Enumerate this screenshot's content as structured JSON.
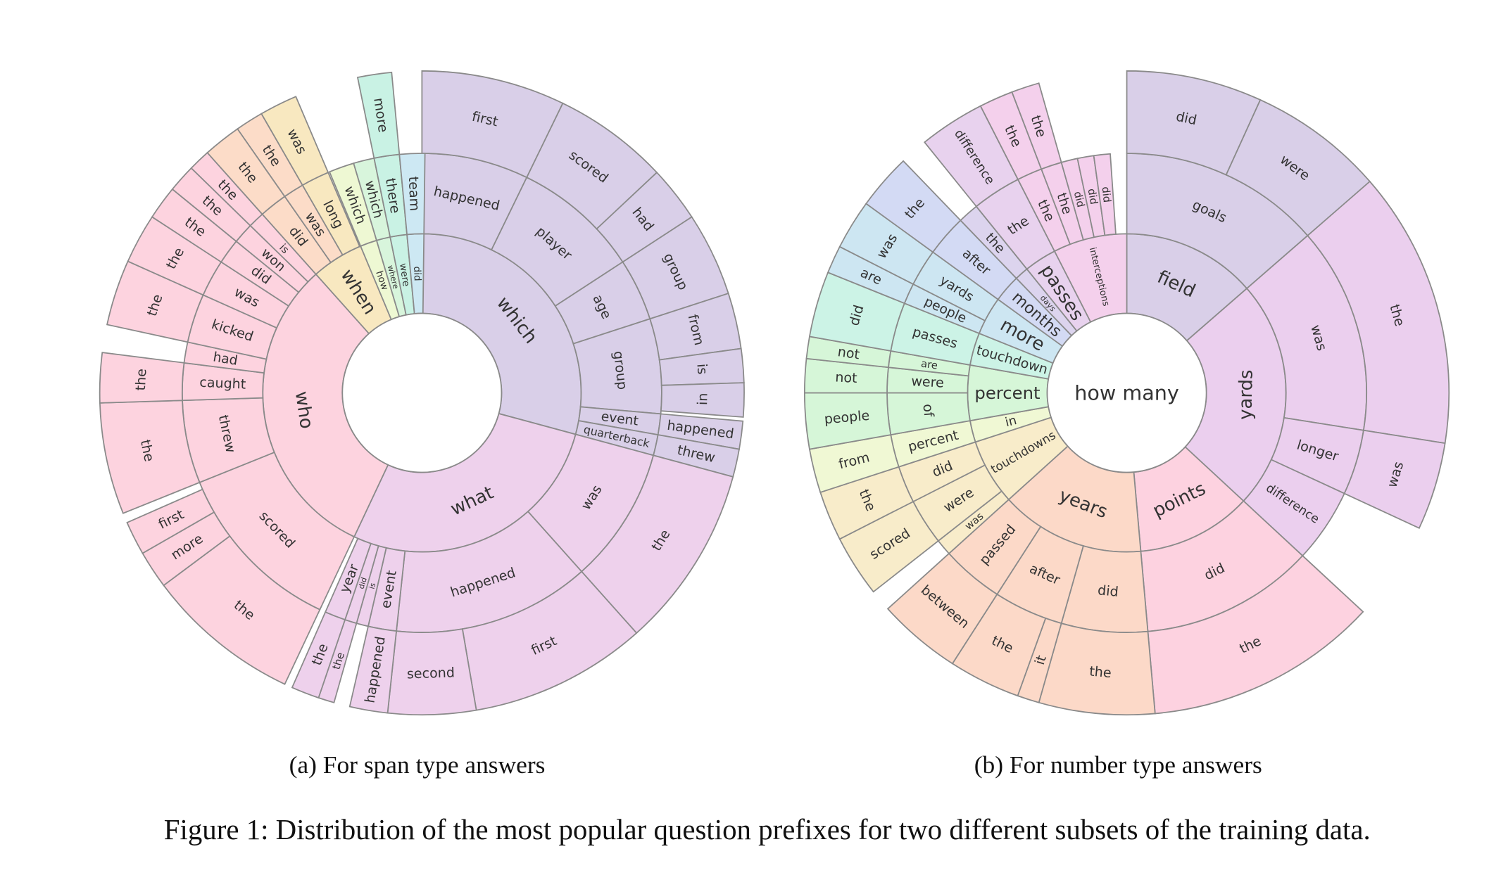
{
  "chart_data": [
    {
      "type": "sunburst",
      "caption": "(a) For span type answers",
      "children": [
        {
          "name": "which",
          "value": 29.2,
          "color": "#d9cfe8",
          "children": [
            {
              "name": "happened",
              "value": 7.2,
              "children": [
                {
                  "name": "first",
                  "value": 7.2
                }
              ]
            },
            {
              "name": "player",
              "value": 8.6,
              "children": [
                {
                  "name": "scored",
                  "value": 5.8
                },
                {
                  "name": "had",
                  "value": 2.8
                }
              ]
            },
            {
              "name": "age",
              "value": 4.2,
              "children": [
                {
                  "name": "group",
                  "value": 4.2
                }
              ]
            },
            {
              "name": "group",
              "value": 6.4,
              "children": [
                {
                  "name": "from",
                  "value": 2.8
                },
                {
                  "name": "is",
                  "value": 1.7
                },
                {
                  "name": "in",
                  "value": 1.7
                }
              ]
            },
            {
              "name": "event",
              "value": 1.4,
              "children": [
                {
                  "name": "happened",
                  "value": 1.4
                }
              ]
            },
            {
              "name": "quarterback",
              "value": 1.4,
              "children": [
                {
                  "name": "threw",
                  "value": 1.4
                }
              ]
            }
          ]
        },
        {
          "name": "what",
          "value": 27.8,
          "color": "#eed1ec",
          "children": [
            {
              "name": "was",
              "value": 9.2,
              "children": [
                {
                  "name": "the",
                  "value": 9.2
                }
              ]
            },
            {
              "name": "happened",
              "value": 13.3,
              "children": [
                {
                  "name": "first",
                  "value": 8.9
                },
                {
                  "name": "second",
                  "value": 4.4
                }
              ]
            },
            {
              "name": "event",
              "value": 1.9,
              "children": [
                {
                  "name": "happened",
                  "value": 1.9
                }
              ]
            },
            {
              "name": "is",
              "value": 0.8
            },
            {
              "name": "did",
              "value": 0.8,
              "children": [
                {
                  "name": "the",
                  "value": 0.8
                }
              ]
            },
            {
              "name": "year",
              "value": 1.4,
              "children": [
                {
                  "name": "the",
                  "value": 1.4
                }
              ]
            }
          ]
        },
        {
          "name": "who",
          "value": 31.4,
          "color": "#fdd3df",
          "children": [
            {
              "name": "scored",
              "value": 11.9,
              "children": [
                {
                  "name": "the",
                  "value": 7.8
                },
                {
                  "name": "more",
                  "value": 1.9
                },
                {
                  "name": "first",
                  "value": 1.7
                }
              ]
            },
            {
              "name": "threw",
              "value": 5.6,
              "children": [
                {
                  "name": "the",
                  "value": 5.6
                }
              ]
            },
            {
              "name": "caught",
              "value": 2.5,
              "children": [
                {
                  "name": "the",
                  "value": 2.5
                }
              ]
            },
            {
              "name": "had",
              "value": 1.4
            },
            {
              "name": "kicked",
              "value": 3.3,
              "children": [
                {
                  "name": "the",
                  "value": 3.3
                }
              ]
            },
            {
              "name": "was",
              "value": 2.5,
              "children": [
                {
                  "name": "the",
                  "value": 2.5
                }
              ]
            },
            {
              "name": "did",
              "value": 1.7,
              "children": [
                {
                  "name": "the",
                  "value": 1.7
                }
              ]
            },
            {
              "name": "won",
              "value": 1.4,
              "children": [
                {
                  "name": "the",
                  "value": 1.4
                }
              ]
            },
            {
              "name": "is",
              "value": 1.1,
              "children": [
                {
                  "name": "the",
                  "value": 1.1
                }
              ]
            }
          ]
        },
        {
          "name": "when",
          "value": 5.3,
          "color": "#f8e8c0",
          "children": [
            {
              "name": "did",
              "value": 1.9,
              "color": "#fcdcc8",
              "children": [
                {
                  "name": "the",
                  "value": 1.9
                }
              ]
            },
            {
              "name": "was",
              "value": 1.4,
              "color": "#fcdcc8",
              "children": [
                {
                  "name": "the",
                  "value": 1.4
                }
              ]
            },
            {
              "name": "long",
              "value": 1.9,
              "children": [
                {
                  "name": "was",
                  "value": 1.9
                }
              ]
            }
          ]
        },
        {
          "name": "how",
          "value": 1.7,
          "color": "#eef8d3",
          "children": [
            {
              "name": "which",
              "value": 1.7
            }
          ]
        },
        {
          "name": "where",
          "value": 1.4,
          "color": "#d8f5dc",
          "children": [
            {
              "name": "which",
              "value": 1.4
            }
          ]
        },
        {
          "name": "were",
          "value": 1.7,
          "color": "#c9f2e4",
          "children": [
            {
              "name": "there",
              "value": 1.7,
              "children": [
                {
                  "name": "more",
                  "value": 1.7
                }
              ]
            }
          ]
        },
        {
          "name": "did",
          "value": 1.7,
          "color": "#cde8f3",
          "children": [
            {
              "name": "team",
              "value": 1.7
            }
          ]
        }
      ]
    },
    {
      "type": "sunburst",
      "caption": "(b) For number type answers",
      "center": "how many",
      "children": [
        {
          "name": "field",
          "value": 13.6,
          "color": "#d9cfe8",
          "children": [
            {
              "name": "goals",
              "value": 13.6,
              "children": [
                {
                  "name": "did",
                  "value": 6.8
                },
                {
                  "name": "were",
                  "value": 6.8
                }
              ]
            }
          ]
        },
        {
          "name": "yards",
          "value": 23.3,
          "color": "#ebcfee",
          "children": [
            {
              "name": "was",
              "value": 13.9,
              "children": [
                {
                  "name": "the",
                  "value": 13.9
                }
              ]
            },
            {
              "name": "longer",
              "value": 4.4,
              "children": [
                {
                  "name": "was",
                  "value": 4.4
                }
              ]
            },
            {
              "name": "difference",
              "value": 5.0
            }
          ]
        },
        {
          "name": "points",
          "value": 11.7,
          "color": "#fdd2e0",
          "children": [
            {
              "name": "did",
              "value": 11.7,
              "children": [
                {
                  "name": "the",
                  "value": 11.7
                }
              ]
            }
          ]
        },
        {
          "name": "years",
          "value": 14.7,
          "color": "#fcd9c8",
          "children": [
            {
              "name": "did",
              "value": 5.8,
              "children": [
                {
                  "name": "the",
                  "value": 5.8
                }
              ]
            },
            {
              "name": "after",
              "value": 4.7,
              "children": [
                {
                  "name": "it",
                  "value": 1.1
                },
                {
                  "name": "the",
                  "value": 3.6
                }
              ]
            },
            {
              "name": "passed",
              "value": 4.2,
              "children": [
                {
                  "name": "between",
                  "value": 4.2
                }
              ]
            }
          ]
        },
        {
          "name": "touchdowns",
          "value": 6.7,
          "color": "#f8ecca",
          "children": [
            {
              "name": "was",
              "value": 1.1
            },
            {
              "name": "were",
              "value": 3.1,
              "children": [
                {
                  "name": "scored",
                  "value": 3.1
                }
              ]
            },
            {
              "name": "did",
              "value": 2.5,
              "children": [
                {
                  "name": "the",
                  "value": 2.5
                }
              ]
            }
          ]
        },
        {
          "name": "in",
          "value": 2.2,
          "color": "#f0f8d4",
          "children": [
            {
              "name": "percent",
              "value": 2.2,
              "children": [
                {
                  "name": "from",
                  "value": 2.2
                }
              ]
            }
          ]
        },
        {
          "name": "percent",
          "value": 5.6,
          "color": "#d6f6d8",
          "children": [
            {
              "name": "of",
              "value": 2.8,
              "children": [
                {
                  "name": "people",
                  "value": 2.8
                }
              ]
            },
            {
              "name": "were",
              "value": 1.7,
              "children": [
                {
                  "name": "not",
                  "value": 1.7
                }
              ]
            },
            {
              "name": "are",
              "value": 1.1,
              "children": [
                {
                  "name": "not",
                  "value": 1.1
                }
              ]
            }
          ]
        },
        {
          "name": "touchdown",
          "value": 3.3,
          "color": "#ccf3e6",
          "children": [
            {
              "name": "passes",
              "value": 3.3,
              "children": [
                {
                  "name": "did",
                  "value": 3.3
                }
              ]
            }
          ]
        },
        {
          "name": "more",
          "value": 3.9,
          "color": "#cde6f2",
          "children": [
            {
              "name": "people",
              "value": 1.4,
              "children": [
                {
                  "name": "are",
                  "value": 1.4
                }
              ]
            },
            {
              "name": "yards",
              "value": 2.5,
              "children": [
                {
                  "name": "was",
                  "value": 2.5
                }
              ]
            }
          ]
        },
        {
          "name": "months",
          "value": 2.8,
          "color": "#d3daf4",
          "children": [
            {
              "name": "after",
              "value": 2.8,
              "children": [
                {
                  "name": "the",
                  "value": 2.8
                }
              ]
            }
          ]
        },
        {
          "name": "days",
          "value": 1.4,
          "color": "#dcd4ee",
          "children": [
            {
              "name": "the",
              "value": 1.4
            }
          ]
        },
        {
          "name": "passes",
          "value": 3.3,
          "color": "#e8d2ee",
          "children": [
            {
              "name": "the",
              "value": 3.3,
              "children": [
                {
                  "name": "difference",
                  "value": 3.3
                }
              ]
            }
          ]
        },
        {
          "name": "interceptions",
          "value": 7.5,
          "color": "#f4d0ec",
          "children": [
            {
              "name": "the",
              "value": 1.7,
              "children": [
                {
                  "name": "the",
                  "value": 1.7
                }
              ]
            },
            {
              "name": "the",
              "value": 1.4,
              "children": [
                {
                  "name": "the",
                  "value": 1.4
                }
              ]
            },
            {
              "name": "did",
              "value": 1.1
            },
            {
              "name": "did",
              "value": 1.1
            },
            {
              "name": "did",
              "value": 1.1
            }
          ]
        }
      ]
    }
  ],
  "figure_caption": "Figure 1: Distribution of the most popular question prefixes for two different subsets of the training data."
}
